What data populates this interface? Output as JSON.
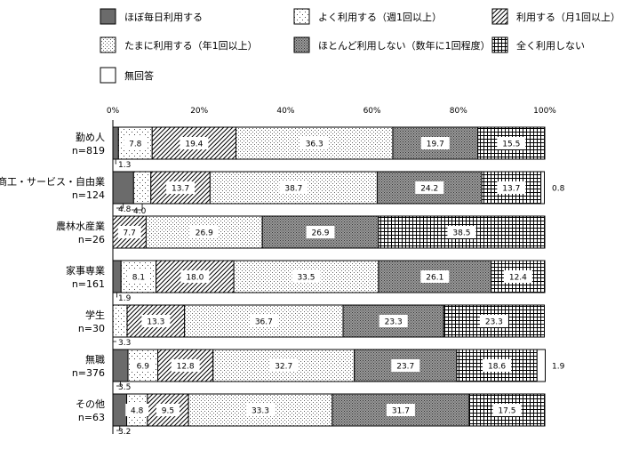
{
  "chart_data": {
    "type": "bar",
    "orientation": "horizontal",
    "stacked": true,
    "percent": true,
    "xlim": [
      0,
      100
    ],
    "x_ticks": [
      "0%",
      "20%",
      "40%",
      "60%",
      "80%",
      "100%"
    ],
    "legend_position": "top",
    "categories": [
      {
        "name": "勤め人",
        "n": "n=819"
      },
      {
        "name": "商工・サービス・自由業",
        "n": "n=124"
      },
      {
        "name": "農林水産業",
        "n": "n=26"
      },
      {
        "name": "家事専業",
        "n": "n=161"
      },
      {
        "name": "学生",
        "n": "n=30"
      },
      {
        "name": "無職",
        "n": "n=376"
      },
      {
        "name": "その他",
        "n": "n=63"
      }
    ],
    "series": [
      {
        "name": "ほぼ毎日利用する",
        "pattern": "dark-gray",
        "values": [
          1.3,
          4.8,
          0,
          1.9,
          0,
          3.5,
          3.2
        ]
      },
      {
        "name": "よく利用する（週1回以上）",
        "pattern": "sparse-dots",
        "values": [
          7.8,
          4.0,
          0,
          8.1,
          3.3,
          6.9,
          4.8
        ]
      },
      {
        "name": "利用する（月1回以上）",
        "pattern": "diagonal-hatch",
        "values": [
          19.4,
          13.7,
          7.7,
          18.0,
          13.3,
          12.8,
          9.5
        ]
      },
      {
        "name": "たまに利用する（年1回以上）",
        "pattern": "fine-dots",
        "values": [
          36.3,
          38.7,
          26.9,
          33.5,
          36.7,
          32.7,
          33.3
        ]
      },
      {
        "name": "ほとんど利用しない（数年に1回程度）",
        "pattern": "dense-dots",
        "values": [
          19.7,
          24.2,
          26.9,
          26.1,
          23.3,
          23.7,
          31.7
        ]
      },
      {
        "name": "全く利用しない",
        "pattern": "grid",
        "values": [
          15.5,
          13.7,
          38.5,
          12.4,
          23.3,
          18.6,
          17.5
        ]
      },
      {
        "name": "無回答",
        "pattern": "white",
        "values": [
          0,
          0.8,
          0,
          0,
          0,
          1.9,
          0
        ]
      }
    ],
    "inside_labels": [
      [
        "",
        "7.8",
        "19.4",
        "36.3",
        "19.7",
        "15.5",
        ""
      ],
      [
        "",
        "",
        "13.7",
        "38.7",
        "24.2",
        "13.7",
        ""
      ],
      [
        "",
        "",
        "7.7",
        "26.9",
        "26.9",
        "38.5",
        ""
      ],
      [
        "",
        "8.1",
        "18.0",
        "33.5",
        "26.1",
        "12.4",
        ""
      ],
      [
        "",
        "",
        "13.3",
        "36.7",
        "23.3",
        "23.3",
        ""
      ],
      [
        "",
        "6.9",
        "12.8",
        "32.7",
        "23.7",
        "18.6",
        ""
      ],
      [
        "",
        "4.8",
        "9.5",
        "33.3",
        "31.7",
        "17.5",
        ""
      ]
    ],
    "callouts_below": [
      [
        "1.3"
      ],
      [
        "4.8",
        "4.0"
      ],
      [],
      [
        "1.9"
      ],
      [
        "3.3"
      ],
      [
        "3.5"
      ],
      [
        "3.2"
      ]
    ],
    "callouts_right": [
      "",
      "0.8",
      "",
      "",
      "",
      "1.9",
      ""
    ]
  }
}
